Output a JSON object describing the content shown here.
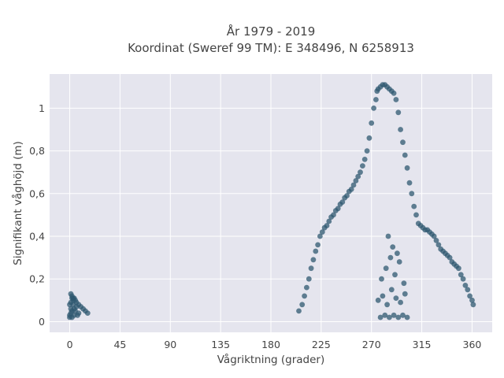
{
  "chart_data": {
    "type": "scatter",
    "title": "År 1979 - 2019",
    "subtitle": "Koordinat (Sweref 99 TM): E 348496, N 6258913",
    "xlabel": "Vågriktning (grader)",
    "ylabel": "Signifikant våghöjd (m)",
    "xlim": [
      -18,
      378
    ],
    "ylim": [
      -0.05,
      1.16
    ],
    "xticks": [
      0,
      45,
      90,
      135,
      180,
      225,
      270,
      315,
      360
    ],
    "xtick_labels": [
      "0",
      "45",
      "90",
      "135",
      "180",
      "225",
      "270",
      "315",
      "360"
    ],
    "yticks": [
      0,
      0.2,
      0.4,
      0.6,
      0.8,
      1
    ],
    "ytick_labels": [
      "0",
      "0,2",
      "0,4",
      "0,6",
      "0,8",
      "1"
    ],
    "grid": true,
    "legend": "none",
    "colors": {
      "marker": "#2f5870",
      "background": "#e5e5ee",
      "grid": "#ffffff"
    },
    "series": [
      {
        "x": [
          0,
          1,
          2,
          3,
          4,
          5,
          6,
          8,
          10,
          12,
          14,
          16,
          0,
          2,
          4,
          6,
          8,
          1,
          3,
          5,
          7,
          2,
          4,
          1,
          3,
          0,
          1,
          2,
          205,
          208,
          210,
          212,
          214,
          216,
          218,
          220,
          222,
          224,
          226,
          228,
          230,
          232,
          234,
          236,
          238,
          240,
          242,
          244,
          246,
          248,
          250,
          252,
          254,
          256,
          258,
          260,
          262,
          264,
          266,
          268,
          270,
          272,
          274,
          275,
          276,
          278,
          280,
          282,
          284,
          286,
          288,
          290,
          292,
          294,
          296,
          298,
          300,
          302,
          304,
          306,
          308,
          310,
          312,
          314,
          316,
          318,
          320,
          322,
          324,
          326,
          328,
          330,
          332,
          334,
          336,
          338,
          340,
          342,
          344,
          346,
          348,
          350,
          352,
          354,
          356,
          358,
          360,
          361,
          278,
          282,
          286,
          290,
          294,
          298,
          302,
          276,
          280,
          284,
          288,
          292,
          296,
          300,
          279,
          283,
          287,
          291,
          295,
          299,
          285,
          289,
          293
        ],
        "y": [
          0.02,
          0.13,
          0.12,
          0.11,
          0.11,
          0.1,
          0.09,
          0.08,
          0.07,
          0.06,
          0.05,
          0.04,
          0.03,
          0.05,
          0.06,
          0.07,
          0.04,
          0.09,
          0.08,
          0.05,
          0.03,
          0.02,
          0.03,
          0.06,
          0.1,
          0.08,
          0.04,
          0.11,
          0.05,
          0.08,
          0.12,
          0.16,
          0.2,
          0.25,
          0.29,
          0.33,
          0.36,
          0.4,
          0.42,
          0.44,
          0.45,
          0.47,
          0.49,
          0.5,
          0.52,
          0.53,
          0.55,
          0.56,
          0.58,
          0.59,
          0.61,
          0.62,
          0.64,
          0.66,
          0.68,
          0.7,
          0.73,
          0.76,
          0.8,
          0.86,
          0.93,
          1.0,
          1.04,
          1.08,
          1.09,
          1.1,
          1.11,
          1.11,
          1.1,
          1.09,
          1.08,
          1.07,
          1.04,
          0.98,
          0.9,
          0.84,
          0.78,
          0.72,
          0.65,
          0.6,
          0.54,
          0.5,
          0.46,
          0.45,
          0.44,
          0.43,
          0.43,
          0.42,
          0.41,
          0.4,
          0.38,
          0.36,
          0.34,
          0.33,
          0.32,
          0.31,
          0.3,
          0.28,
          0.27,
          0.26,
          0.25,
          0.22,
          0.2,
          0.17,
          0.15,
          0.12,
          0.1,
          0.08,
          0.02,
          0.03,
          0.02,
          0.03,
          0.02,
          0.03,
          0.02,
          0.1,
          0.12,
          0.08,
          0.15,
          0.11,
          0.09,
          0.13,
          0.2,
          0.25,
          0.3,
          0.22,
          0.28,
          0.18,
          0.4,
          0.35,
          0.32
        ]
      }
    ]
  }
}
